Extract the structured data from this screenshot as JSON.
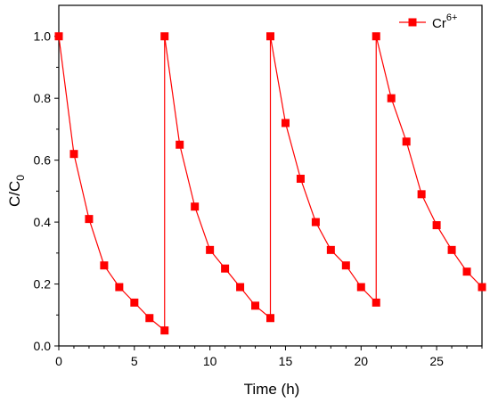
{
  "chart_data": {
    "type": "line",
    "xlabel": "Time (h)",
    "ylabel_main": "C/C",
    "ylabel_sub": "0",
    "xlim": [
      0,
      28
    ],
    "ylim": [
      0,
      1.1
    ],
    "x_ticks": [
      0,
      5,
      10,
      15,
      20,
      25
    ],
    "x_tick_labels": [
      "0",
      "5",
      "10",
      "15",
      "20",
      "25"
    ],
    "y_ticks": [
      0,
      0.2,
      0.4,
      0.6,
      0.8,
      1.0
    ],
    "y_tick_labels": [
      "0.0",
      "0.2",
      "0.4",
      "0.6",
      "0.8",
      "1.0"
    ],
    "grid": false,
    "legend_position": "top-right",
    "series": [
      {
        "name_main": "Cr",
        "name_sup": "6+",
        "color": "#ff0000",
        "marker": "square",
        "points": [
          [
            0,
            1.0
          ],
          [
            1,
            0.62
          ],
          [
            2,
            0.41
          ],
          [
            3,
            0.26
          ],
          [
            4,
            0.19
          ],
          [
            5,
            0.14
          ],
          [
            6,
            0.09
          ],
          [
            7,
            0.05
          ],
          [
            7,
            1.0
          ],
          [
            8,
            0.65
          ],
          [
            9,
            0.45
          ],
          [
            10,
            0.31
          ],
          [
            11,
            0.25
          ],
          [
            12,
            0.19
          ],
          [
            13,
            0.13
          ],
          [
            14,
            0.09
          ],
          [
            14,
            1.0
          ],
          [
            15,
            0.72
          ],
          [
            16,
            0.54
          ],
          [
            17,
            0.4
          ],
          [
            18,
            0.31
          ],
          [
            19,
            0.26
          ],
          [
            20,
            0.19
          ],
          [
            21,
            0.14
          ],
          [
            21,
            1.0
          ],
          [
            22,
            0.8
          ],
          [
            23,
            0.66
          ],
          [
            24,
            0.49
          ],
          [
            25,
            0.39
          ],
          [
            26,
            0.31
          ],
          [
            27,
            0.24
          ],
          [
            28,
            0.19
          ]
        ]
      }
    ]
  }
}
